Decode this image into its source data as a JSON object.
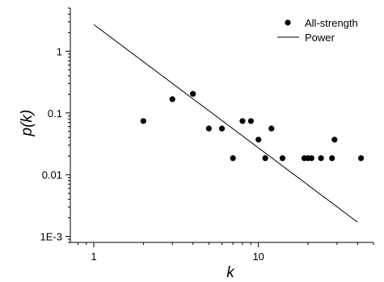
{
  "chart_data": {
    "type": "scatter",
    "xlabel": "k",
    "ylabel": "p(k)",
    "x_scale": "log",
    "y_scale": "log",
    "xlim": [
      0.72,
      50
    ],
    "ylim": [
      0.0008,
      5
    ],
    "x_ticks": [
      {
        "value": 1,
        "label": "1"
      },
      {
        "value": 10,
        "label": "10"
      }
    ],
    "y_ticks": [
      {
        "value": 0.001,
        "label": "1E-3"
      },
      {
        "value": 0.01,
        "label": "0.01"
      },
      {
        "value": 0.1,
        "label": "0.1"
      },
      {
        "value": 1,
        "label": "1"
      }
    ],
    "grid": false,
    "legend_position": "top-right",
    "series": [
      {
        "name": "All-strength",
        "kind": "scatter",
        "color": "#000000",
        "points": [
          {
            "x": 2,
            "y": 0.074
          },
          {
            "x": 3,
            "y": 0.167
          },
          {
            "x": 4,
            "y": 0.204
          },
          {
            "x": 5,
            "y": 0.056
          },
          {
            "x": 6,
            "y": 0.056
          },
          {
            "x": 7,
            "y": 0.0185
          },
          {
            "x": 8,
            "y": 0.074
          },
          {
            "x": 9,
            "y": 0.074
          },
          {
            "x": 10,
            "y": 0.037
          },
          {
            "x": 11,
            "y": 0.0185
          },
          {
            "x": 12,
            "y": 0.056
          },
          {
            "x": 14,
            "y": 0.0185
          },
          {
            "x": 19,
            "y": 0.0185
          },
          {
            "x": 20,
            "y": 0.0185
          },
          {
            "x": 21,
            "y": 0.0185
          },
          {
            "x": 24,
            "y": 0.0185
          },
          {
            "x": 28,
            "y": 0.0185
          },
          {
            "x": 29,
            "y": 0.037
          },
          {
            "x": 42,
            "y": 0.0185
          }
        ]
      },
      {
        "name": "Power",
        "kind": "line",
        "color": "#000000",
        "points": [
          {
            "x": 1,
            "y": 2.7
          },
          {
            "x": 40,
            "y": 0.0017
          }
        ]
      }
    ]
  }
}
